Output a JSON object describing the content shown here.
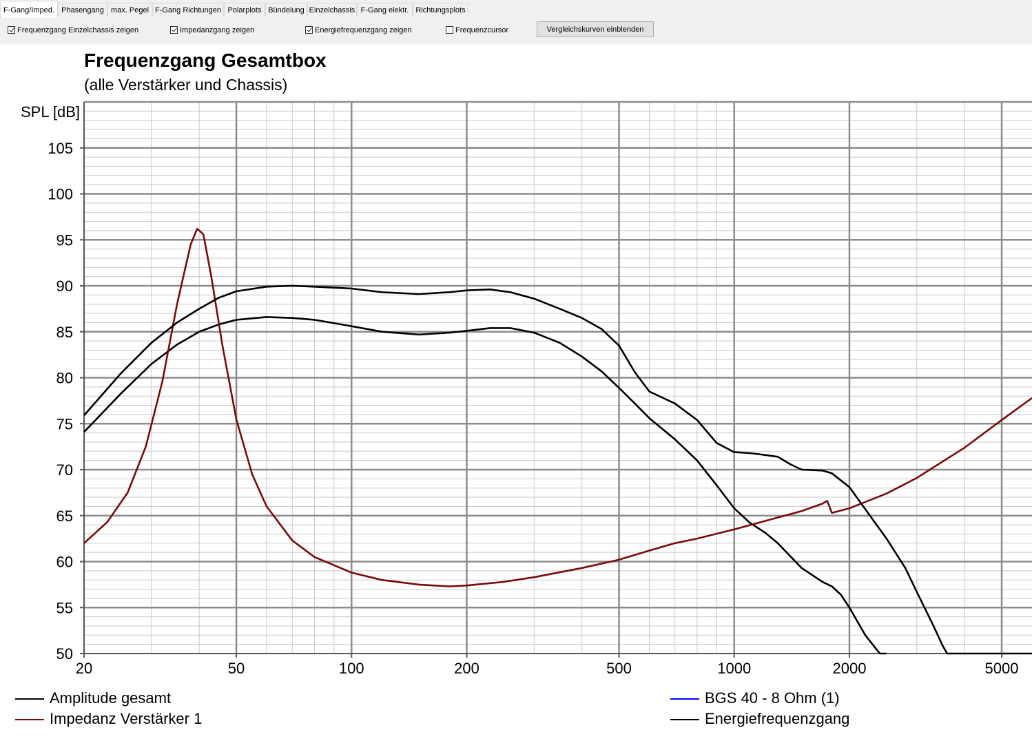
{
  "tabs": [
    {
      "label": "F-Gang/Imped.",
      "active": true
    },
    {
      "label": "Phasengang",
      "active": false
    },
    {
      "label": "max. Pegel",
      "active": false
    },
    {
      "label": "F-Gang Richtungen",
      "active": false
    },
    {
      "label": "Polarplots",
      "active": false
    },
    {
      "label": "Bündelung",
      "active": false
    },
    {
      "label": "Einzelchassis",
      "active": false
    },
    {
      "label": "F-Gang elektr.",
      "active": false
    },
    {
      "label": "Richtungsplots",
      "active": false
    }
  ],
  "options": [
    {
      "label": "Frequenzgang Einzelchassis zeigen",
      "checked": true
    },
    {
      "label": "Impedanzgang zeigen",
      "checked": true
    },
    {
      "label": "Energiefrequenzgang zeigen",
      "checked": true
    },
    {
      "label": "Frequenzcursor",
      "checked": false
    }
  ],
  "compare_button": "Vergleichskurven einblenden",
  "chart_data": {
    "type": "line",
    "title": "Frequenzgang Gesamtbox",
    "subtitle": "(alle Verstärker und Chassis)",
    "ylabel": "SPL [dB]",
    "xscale": "log",
    "xlim": [
      20,
      6000
    ],
    "ylim": [
      50,
      110
    ],
    "xticks": [
      20,
      50,
      100,
      200,
      500,
      1000,
      2000,
      5000
    ],
    "xtick_labels": [
      "20",
      "50",
      "100",
      "200",
      "500",
      "1000",
      "2000",
      "5000"
    ],
    "yticks": [
      50,
      55,
      60,
      65,
      70,
      75,
      80,
      85,
      90,
      95,
      100,
      105
    ],
    "grid": true,
    "series": [
      {
        "name": "Amplitude gesamt",
        "color": "#000000",
        "x": [
          20,
          25,
          30,
          35,
          40,
          45,
          50,
          60,
          70,
          80,
          100,
          120,
          150,
          180,
          200,
          230,
          260,
          300,
          350,
          400,
          450,
          500,
          550,
          600,
          700,
          800,
          900,
          1000,
          1100,
          1200,
          1300,
          1500,
          1700,
          1800,
          1900,
          2000,
          2200,
          2400,
          2500
        ],
        "y": [
          74.1,
          78.3,
          81.5,
          83.6,
          85.0,
          85.8,
          86.3,
          86.6,
          86.5,
          86.3,
          85.6,
          85.0,
          84.7,
          84.9,
          85.1,
          85.4,
          85.4,
          84.9,
          83.8,
          82.3,
          80.7,
          78.9,
          77.2,
          75.6,
          73.3,
          71.0,
          68.3,
          65.8,
          64.2,
          63.2,
          62.0,
          59.3,
          57.8,
          57.3,
          56.4,
          55.0,
          52.0,
          50.0,
          50.0
        ]
      },
      {
        "name": "Impedanz Verstärker 1",
        "color": "#7a0a0a",
        "x": [
          20,
          23,
          26,
          29,
          32,
          35,
          38,
          39.5,
          41,
          43,
          46,
          50,
          55,
          60,
          70,
          80,
          100,
          120,
          150,
          180,
          200,
          250,
          300,
          400,
          500,
          600,
          700,
          800,
          1000,
          1200,
          1500,
          1700,
          1750,
          1800,
          2000,
          2500,
          3000,
          4000,
          5000,
          6000
        ],
        "y": [
          62.0,
          64.3,
          67.5,
          72.5,
          79.5,
          88.0,
          94.5,
          96.2,
          95.6,
          91.0,
          83.5,
          75.5,
          69.5,
          66.0,
          62.3,
          60.5,
          58.8,
          58.0,
          57.5,
          57.3,
          57.4,
          57.8,
          58.3,
          59.3,
          60.2,
          61.2,
          62.0,
          62.5,
          63.5,
          64.4,
          65.5,
          66.3,
          66.6,
          65.3,
          65.8,
          67.4,
          69.1,
          72.4,
          75.4,
          77.8
        ]
      },
      {
        "name": "BGS 40 - 8 Ohm (1)",
        "color": "#0000ff",
        "x": [],
        "y": []
      },
      {
        "name": "Energiefrequenzgang",
        "color": "#000000",
        "x": [
          20,
          25,
          30,
          35,
          40,
          45,
          50,
          60,
          70,
          80,
          100,
          120,
          150,
          180,
          200,
          230,
          260,
          300,
          350,
          400,
          450,
          500,
          550,
          600,
          700,
          800,
          900,
          1000,
          1100,
          1200,
          1300,
          1400,
          1500,
          1700,
          1800,
          2000,
          2200,
          2500,
          2800,
          3000,
          3300,
          3500,
          3600,
          3700,
          6000
        ],
        "y": [
          75.9,
          80.5,
          83.8,
          86.0,
          87.5,
          88.7,
          89.4,
          89.9,
          90.0,
          89.9,
          89.7,
          89.3,
          89.1,
          89.3,
          89.5,
          89.6,
          89.3,
          88.6,
          87.5,
          86.5,
          85.3,
          83.5,
          80.6,
          78.5,
          77.2,
          75.4,
          72.9,
          71.9,
          71.8,
          71.6,
          71.4,
          70.6,
          70.0,
          69.9,
          69.6,
          68.1,
          65.7,
          62.5,
          59.3,
          56.7,
          53.2,
          50.9,
          50.0,
          50.0,
          50.0
        ]
      }
    ]
  }
}
